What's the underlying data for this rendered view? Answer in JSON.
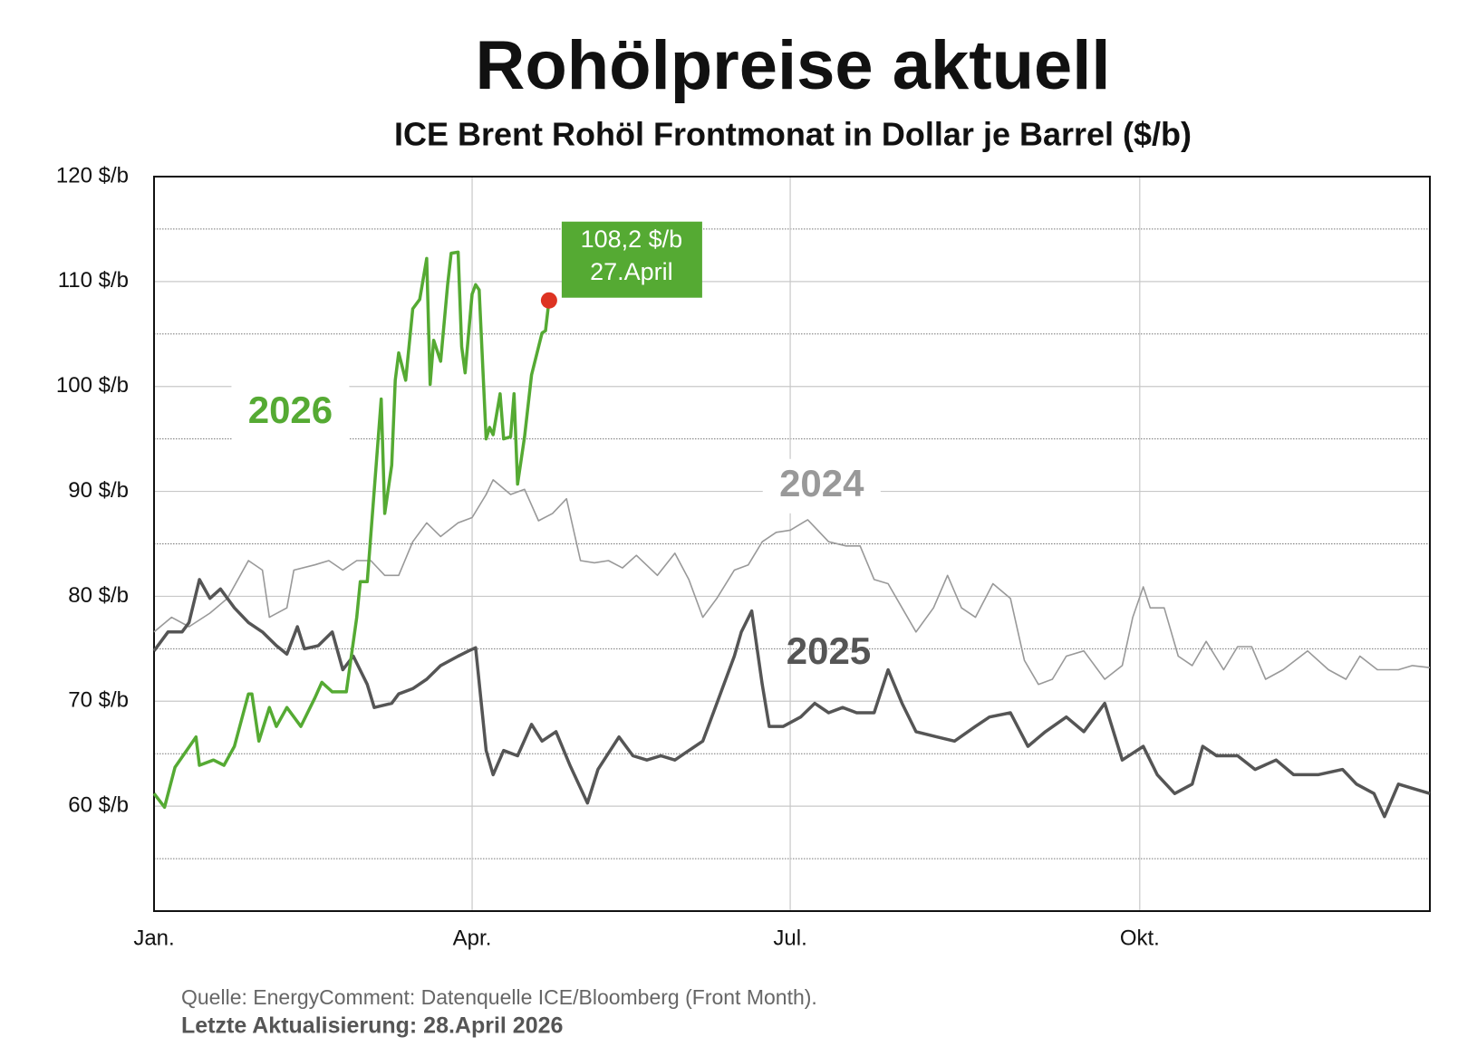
{
  "chart_data": {
    "type": "line",
    "title": "Rohölpreise aktuell",
    "subtitle": "ICE Brent Rohöl Frontmonat in Dollar je Barrel ($/b)",
    "xlim": [
      0,
      365
    ],
    "xticks": [
      {
        "value": 0,
        "label": "Jan."
      },
      {
        "value": 91,
        "label": "Apr."
      },
      {
        "value": 182,
        "label": "Jul."
      },
      {
        "value": 282,
        "label": "Okt."
      }
    ],
    "ylim": [
      50,
      120
    ],
    "yticks": [
      {
        "value": 60,
        "label": "60 $/b"
      },
      {
        "value": 70,
        "label": "70 $/b"
      },
      {
        "value": 80,
        "label": "80 $/b"
      },
      {
        "value": 90,
        "label": "90 $/b"
      },
      {
        "value": 100,
        "label": "100 $/b"
      },
      {
        "value": 110,
        "label": "110 $/b"
      },
      {
        "value": 120,
        "label": "120 $/b"
      }
    ],
    "yminor": [
      55,
      65,
      75,
      85,
      95,
      105,
      115
    ],
    "grid": true,
    "series": [
      {
        "name": "2026",
        "color": "#55aa33",
        "x": [
          0,
          3,
          6,
          12,
          13,
          17,
          20,
          23,
          27,
          28,
          30,
          33,
          35,
          38,
          42,
          46,
          48,
          51,
          55,
          58,
          59,
          61,
          65,
          66,
          68,
          69,
          70,
          72,
          74,
          76,
          78,
          79,
          80,
          82,
          84,
          85,
          87,
          88,
          89,
          91,
          92,
          93,
          95,
          96,
          97,
          99,
          100,
          102,
          103,
          104,
          106,
          108,
          111,
          112,
          113
        ],
        "values": [
          61.2,
          59.9,
          63.7,
          66.6,
          63.9,
          64.4,
          63.9,
          65.7,
          70.7,
          70.7,
          66.2,
          69.4,
          67.6,
          69.4,
          67.6,
          70.3,
          71.8,
          70.9,
          70.9,
          78.0,
          81.4,
          81.4,
          98.8,
          87.9,
          92.5,
          100.6,
          103.2,
          100.6,
          107.4,
          108.3,
          112.2,
          100.2,
          104.4,
          102.4,
          109.7,
          112.7,
          112.8,
          103.8,
          101.3,
          108.8,
          109.7,
          109.2,
          95.0,
          96.1,
          95.4,
          99.3,
          95.0,
          95.2,
          99.3,
          90.7,
          95.2,
          101.1,
          105.1,
          105.3,
          108.2
        ]
      },
      {
        "name": "2025",
        "color": "#555555",
        "x": [
          0,
          4,
          8,
          10,
          13,
          16,
          19,
          23,
          27,
          31,
          35,
          38,
          41,
          43,
          47,
          51,
          54,
          57,
          61,
          63,
          68,
          70,
          74,
          78,
          82,
          87,
          90,
          92,
          95,
          97,
          100,
          104,
          108,
          111,
          115,
          119,
          124,
          127,
          133,
          137,
          141,
          145,
          149,
          153,
          157,
          161,
          166,
          168,
          171,
          174,
          176,
          180,
          185,
          189,
          193,
          197,
          201,
          206,
          210,
          214,
          218,
          224,
          229,
          235,
          239,
          245,
          250,
          255,
          261,
          266,
          272,
          277,
          283,
          287,
          292,
          297,
          300,
          304,
          310,
          315,
          321,
          326,
          333,
          340,
          344,
          349,
          352,
          356,
          360,
          365
        ],
        "values": [
          74.8,
          76.6,
          76.6,
          77.5,
          81.6,
          79.8,
          80.7,
          78.9,
          77.5,
          76.6,
          75.3,
          74.5,
          77.1,
          75.0,
          75.3,
          76.6,
          73.0,
          74.3,
          71.6,
          69.4,
          69.8,
          70.7,
          71.2,
          72.1,
          73.4,
          74.3,
          74.8,
          75.1,
          65.3,
          63.0,
          65.3,
          64.8,
          67.8,
          66.2,
          67.1,
          63.9,
          60.3,
          63.5,
          66.6,
          64.8,
          64.4,
          64.8,
          64.4,
          65.3,
          66.2,
          69.8,
          74.3,
          76.6,
          78.6,
          71.6,
          67.6,
          67.6,
          68.5,
          69.8,
          68.9,
          69.4,
          68.9,
          68.9,
          73.0,
          69.8,
          67.1,
          66.6,
          66.2,
          67.6,
          68.5,
          68.9,
          65.7,
          67.1,
          68.5,
          67.1,
          69.8,
          64.4,
          65.7,
          63.0,
          61.2,
          62.1,
          65.7,
          64.8,
          64.8,
          63.5,
          64.4,
          63.0,
          63.0,
          63.5,
          62.1,
          61.2,
          59.0,
          62.1,
          61.7,
          61.2
        ]
      },
      {
        "name": "2024",
        "color": "#999999",
        "x": [
          0,
          5,
          10,
          16,
          21,
          27,
          31,
          33,
          38,
          40,
          46,
          50,
          54,
          58,
          62,
          66,
          70,
          74,
          78,
          82,
          87,
          91,
          95,
          97,
          102,
          106,
          110,
          114,
          118,
          122,
          126,
          130,
          134,
          138,
          144,
          149,
          153,
          157,
          161,
          166,
          170,
          174,
          178,
          182,
          187,
          193,
          198,
          202,
          206,
          210,
          214,
          218,
          223,
          227,
          231,
          235,
          240,
          245,
          249,
          253,
          257,
          261,
          266,
          272,
          277,
          280,
          283,
          285,
          289,
          293,
          297,
          301,
          306,
          310,
          314,
          318,
          323,
          330,
          336,
          341,
          345,
          350,
          356,
          360,
          365
        ],
        "values": [
          76.6,
          78.0,
          77.1,
          78.4,
          79.8,
          83.4,
          82.5,
          78.0,
          78.9,
          82.5,
          83.0,
          83.4,
          82.5,
          83.4,
          83.4,
          82.0,
          82.0,
          85.2,
          87.0,
          85.7,
          87.0,
          87.5,
          89.7,
          91.1,
          89.7,
          90.2,
          87.2,
          87.9,
          89.3,
          83.4,
          83.2,
          83.4,
          82.7,
          83.9,
          82.0,
          84.1,
          81.6,
          78.0,
          79.8,
          82.5,
          83.0,
          85.2,
          86.1,
          86.3,
          87.3,
          85.2,
          84.8,
          84.8,
          81.6,
          81.2,
          78.9,
          76.6,
          78.9,
          82.0,
          78.9,
          78.0,
          81.2,
          79.8,
          73.9,
          71.6,
          72.1,
          74.3,
          74.8,
          72.1,
          73.4,
          78.0,
          80.9,
          78.9,
          78.9,
          74.3,
          73.4,
          75.7,
          73.0,
          75.2,
          75.2,
          72.1,
          73.0,
          74.8,
          73.0,
          72.1,
          74.3,
          73.0,
          73.0,
          73.4,
          73.2
        ]
      }
    ],
    "annotation": {
      "lines": [
        "108,2 $/b",
        "27.April"
      ],
      "color": "#55aa33",
      "marker_color": "#dd3322"
    },
    "source": "Quelle: EnergyComment: Datenquelle ICE/Bloomberg (Front Month).",
    "updated": "Letzte Aktualisierung: 28.April 2026"
  }
}
